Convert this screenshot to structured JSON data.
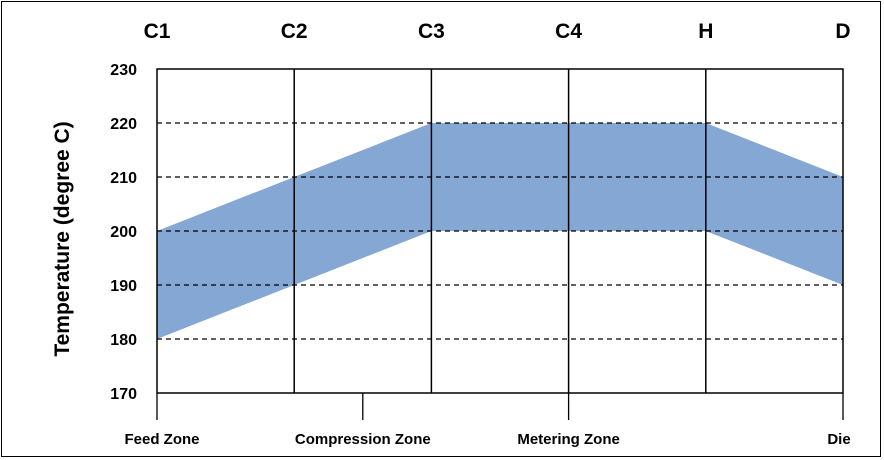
{
  "chart_data": {
    "type": "area",
    "title": "",
    "xlabel": "",
    "ylabel": "Temperature (degree C)",
    "ylim": [
      170,
      230
    ],
    "yticks": [
      170,
      180,
      190,
      200,
      210,
      220,
      230
    ],
    "top_categories": [
      "C1",
      "C2",
      "C3",
      "C4",
      "H",
      "D"
    ],
    "bottom_labels": [
      {
        "label": "Feed Zone",
        "at": 0
      },
      {
        "label": "Compression Zone",
        "at": 1.5
      },
      {
        "label": "Metering Zone",
        "at": 3
      },
      {
        "label": "Die",
        "at": 5
      }
    ],
    "series": [
      {
        "lower": [
          180,
          190,
          200,
          200,
          200,
          190
        ],
        "upper": [
          200,
          210,
          220,
          220,
          220,
          210
        ]
      }
    ],
    "grid": {
      "y": "dashed",
      "x": "solid"
    },
    "band_color": "#84a7d3"
  }
}
